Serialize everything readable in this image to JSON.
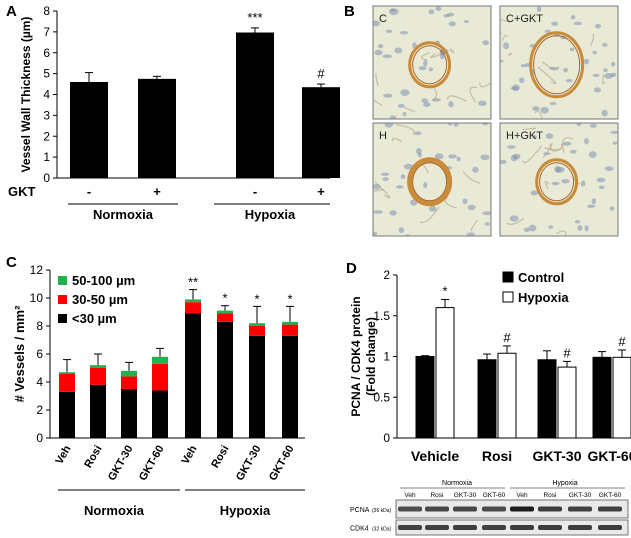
{
  "panel_labels": {
    "a": "A",
    "b": "B",
    "c": "C",
    "d": "D"
  },
  "chart_data": [
    {
      "panel": "A",
      "type": "bar",
      "ylabel": "Vessel Wall Thickness (µm)",
      "ylim": [
        0,
        8
      ],
      "yticks": [
        0,
        1,
        2,
        3,
        4,
        5,
        6,
        7,
        8
      ],
      "row_label": "GKT",
      "categories": [
        "-",
        "+",
        "-",
        "+"
      ],
      "groups": [
        "Normoxia",
        "Hypoxia"
      ],
      "values": [
        4.6,
        4.75,
        6.97,
        4.35
      ],
      "errors": [
        0.45,
        0.12,
        0.22,
        0.15
      ],
      "annotations": [
        "",
        "",
        "***",
        "#"
      ],
      "colors": {
        "bar": "#000000"
      }
    },
    {
      "panel": "C",
      "type": "bar",
      "stacked": true,
      "ylabel": "# Vessels / mm²",
      "ylim": [
        0,
        12
      ],
      "yticks": [
        0,
        2,
        4,
        6,
        8,
        10,
        12
      ],
      "categories": [
        "Veh",
        "Rosi",
        "GKT-30",
        "GKT-60",
        "Veh",
        "Rosi",
        "GKT-30",
        "GKT-60"
      ],
      "groups": [
        "Normoxia",
        "Hypoxia"
      ],
      "series": [
        {
          "name": "<30 µm",
          "color": "#000000",
          "values": [
            3.3,
            3.8,
            3.5,
            3.4,
            8.9,
            8.3,
            7.3,
            7.3
          ]
        },
        {
          "name": "30-50 µm",
          "color": "#ff0000",
          "values": [
            1.3,
            1.2,
            0.9,
            1.9,
            0.8,
            0.6,
            0.7,
            0.8
          ]
        },
        {
          "name": "50-100 µm",
          "color": "#22b14c",
          "values": [
            0.1,
            0.2,
            0.4,
            0.5,
            0.2,
            0.2,
            0.2,
            0.2
          ]
        }
      ],
      "errors": [
        0.9,
        0.8,
        0.6,
        0.6,
        0.7,
        0.35,
        1.2,
        1.1
      ],
      "annotations": [
        "",
        "",
        "",
        "",
        "**",
        "*",
        "*",
        "*"
      ],
      "legend_position": "top-left"
    },
    {
      "panel": "D",
      "type": "bar",
      "ylabel": "PCNA / CDK4 protein (Fold change)",
      "ylim": [
        0,
        2
      ],
      "yticks": [
        0,
        0.5,
        1,
        1.5,
        2
      ],
      "categories": [
        "Vehicle",
        "Rosi",
        "GKT-30",
        "GKT-60"
      ],
      "series": [
        {
          "name": "Control",
          "color": "#000000",
          "values": [
            1.0,
            0.96,
            0.96,
            0.99
          ],
          "errors": [
            0.01,
            0.07,
            0.11,
            0.07
          ]
        },
        {
          "name": "Hypoxia",
          "color": "#ffffff",
          "values": [
            1.6,
            1.04,
            0.87,
            0.99
          ],
          "errors": [
            0.1,
            0.09,
            0.07,
            0.09
          ]
        }
      ],
      "annotations_hypoxia": [
        "*",
        "#",
        "#",
        "#"
      ],
      "legend_position": "top-right"
    }
  ],
  "micrographs": [
    {
      "label": "C"
    },
    {
      "label": "C+GKT"
    },
    {
      "label": "H"
    },
    {
      "label": "H+GKT"
    }
  ],
  "blot": {
    "groups": [
      "Normoxia",
      "Hypoxia"
    ],
    "lanes": [
      "Veh",
      "Rosi",
      "GKT-30",
      "GKT-60",
      "Veh",
      "Rosi",
      "GKT-30",
      "GKT-60"
    ],
    "bands": [
      {
        "name": "PCNA",
        "size": "(36 kDa)",
        "intensity": [
          0.72,
          0.75,
          0.75,
          0.73,
          0.95,
          0.8,
          0.78,
          0.78
        ]
      },
      {
        "name": "CDK4",
        "size": "(32 kDa)",
        "intensity": [
          0.78,
          0.78,
          0.8,
          0.78,
          0.8,
          0.8,
          0.8,
          0.8
        ]
      }
    ]
  }
}
